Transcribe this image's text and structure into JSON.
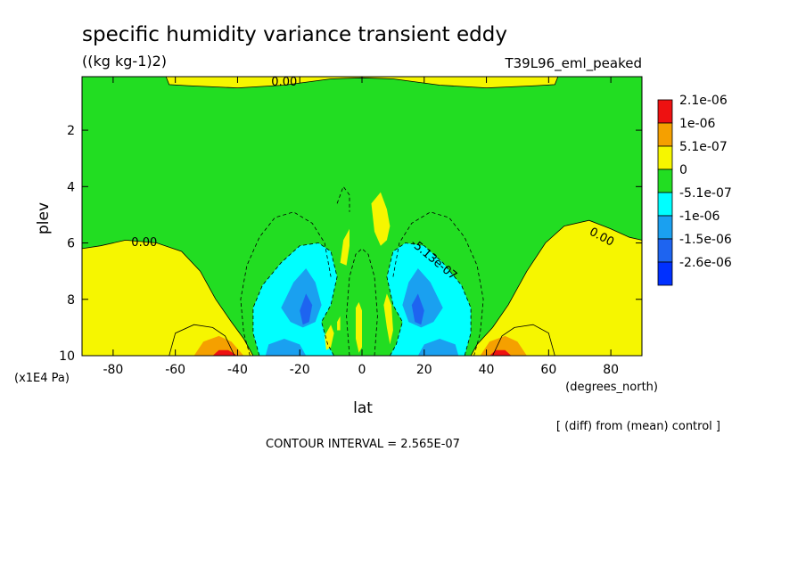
{
  "chart_data": {
    "type": "heatmap",
    "title": "specific humidity variance transient eddy",
    "units": "((kg kg-1)2)",
    "run_label": "T39L96_eml_peaked",
    "xlabel": "lat",
    "x_units": "(degrees_north)",
    "ylabel": "plev",
    "y_units": "(x1E4 Pa)",
    "xlim": [
      -90,
      90
    ],
    "ylim": [
      10,
      0.1
    ],
    "x_ticks": [
      -80,
      -60,
      -40,
      -20,
      0,
      20,
      40,
      60,
      80
    ],
    "x_tick_labels": [
      "-80",
      "-60",
      "-40",
      "-20",
      "0",
      "20",
      "40",
      "60",
      "80"
    ],
    "y_ticks": [
      2,
      4,
      6,
      8,
      10
    ],
    "y_tick_labels": [
      "2",
      "4",
      "6",
      "8",
      "10"
    ],
    "contour_interval_text": "CONTOUR INTERVAL = 2.565E-07",
    "diff_note": "[ (diff) from (mean) control ]",
    "contour_labels": [
      {
        "text": "0.00",
        "x": -25,
        "y": 0.3,
        "rot": 0
      },
      {
        "text": "0.00",
        "x": -70,
        "y": 6.0,
        "rot": 0
      },
      {
        "text": "0.00",
        "x": 77,
        "y": 5.8,
        "rot": 28
      },
      {
        "text": "-5.13e-07",
        "x": 23,
        "y": 6.6,
        "rot": 40
      }
    ],
    "legend": {
      "labels": [
        "2.1e-06",
        "1e-06",
        "5.1e-07",
        "0",
        "-5.1e-07",
        "-1e-06",
        "-1.5e-06",
        "-2.6e-06"
      ],
      "colors": [
        "#ee1111",
        "#f5a000",
        "#f6f600",
        "#22dd22",
        "#00ffff",
        "#1aa0f0",
        "#1e64f0",
        "#0030ff"
      ]
    },
    "fill_colors": {
      "c_n1": "#00ffff",
      "c_n2": "#1aa0f0",
      "c_n3": "#1e64f0",
      "c_p1": "#f6f600",
      "c_p2": "#f5a000",
      "c_p3": "#ee1111",
      "c_zero": "#22dd22"
    },
    "regions": [
      {
        "level": "c_p1",
        "pts": [
          [
            -90,
            6.2
          ],
          [
            -84,
            6.1
          ],
          [
            -76,
            5.9
          ],
          [
            -66,
            6.0
          ],
          [
            -58,
            6.3
          ],
          [
            -52,
            7.0
          ],
          [
            -47,
            8.0
          ],
          [
            -42,
            8.8
          ],
          [
            -38,
            9.4
          ],
          [
            -35,
            10
          ],
          [
            -90,
            10
          ]
        ]
      },
      {
        "level": "c_p1",
        "pts": [
          [
            90,
            5.9
          ],
          [
            86,
            5.8
          ],
          [
            80,
            5.5
          ],
          [
            73,
            5.2
          ],
          [
            65,
            5.4
          ],
          [
            59,
            6.0
          ],
          [
            53,
            7.0
          ],
          [
            47,
            8.2
          ],
          [
            42,
            9.0
          ],
          [
            37,
            9.6
          ],
          [
            35,
            10
          ],
          [
            90,
            10
          ]
        ]
      },
      {
        "level": "c_p2",
        "pts": [
          [
            -54,
            10
          ],
          [
            -51,
            9.5
          ],
          [
            -46,
            9.3
          ],
          [
            -42,
            9.5
          ],
          [
            -38,
            10
          ]
        ]
      },
      {
        "level": "c_p3",
        "pts": [
          [
            -48,
            10
          ],
          [
            -46,
            9.8
          ],
          [
            -43,
            9.8
          ],
          [
            -40,
            10
          ]
        ]
      },
      {
        "level": "c_p2",
        "pts": [
          [
            38,
            10
          ],
          [
            41,
            9.5
          ],
          [
            46,
            9.3
          ],
          [
            50,
            9.5
          ],
          [
            53,
            10
          ]
        ]
      },
      {
        "level": "c_p3",
        "pts": [
          [
            41,
            10
          ],
          [
            43,
            9.8
          ],
          [
            46,
            9.8
          ],
          [
            48,
            10
          ]
        ]
      },
      {
        "level": "c_p1",
        "pts": [
          [
            -63,
            0.1
          ],
          [
            -62,
            0.38
          ],
          [
            -56,
            0.42
          ],
          [
            -40,
            0.5
          ],
          [
            -25,
            0.4
          ],
          [
            -10,
            0.18
          ],
          [
            0,
            0.14
          ],
          [
            10,
            0.18
          ],
          [
            25,
            0.4
          ],
          [
            40,
            0.5
          ],
          [
            56,
            0.42
          ],
          [
            62,
            0.38
          ],
          [
            63,
            0.1
          ]
        ]
      },
      {
        "level": "c_n1",
        "pts": [
          [
            -33,
            10
          ],
          [
            -35,
            9.2
          ],
          [
            -35,
            8.3
          ],
          [
            -32,
            7.5
          ],
          [
            -26,
            6.7
          ],
          [
            -20,
            6.1
          ],
          [
            -14,
            6.0
          ],
          [
            -10,
            6.3
          ],
          [
            -8,
            7.2
          ],
          [
            -10,
            8.2
          ],
          [
            -13,
            8.8
          ],
          [
            -11,
            9.6
          ],
          [
            -9,
            10
          ]
        ]
      },
      {
        "level": "c_n2",
        "pts": [
          [
            -26,
            8.3
          ],
          [
            -22,
            7.4
          ],
          [
            -18,
            6.9
          ],
          [
            -15,
            7.4
          ],
          [
            -13,
            8.2
          ],
          [
            -15,
            8.8
          ],
          [
            -19,
            9.0
          ],
          [
            -23,
            8.8
          ]
        ]
      },
      {
        "level": "c_n3",
        "pts": [
          [
            -20,
            8.4
          ],
          [
            -18,
            7.8
          ],
          [
            -16,
            8.2
          ],
          [
            -17,
            8.8
          ],
          [
            -19,
            8.9
          ]
        ]
      },
      {
        "level": "c_n2",
        "pts": [
          [
            -31,
            10
          ],
          [
            -30,
            9.6
          ],
          [
            -25,
            9.4
          ],
          [
            -20,
            9.6
          ],
          [
            -18,
            10
          ]
        ]
      },
      {
        "level": "c_n1",
        "pts": [
          [
            9,
            10
          ],
          [
            11,
            9.6
          ],
          [
            13,
            8.8
          ],
          [
            10,
            8.2
          ],
          [
            8,
            7.2
          ],
          [
            10,
            6.3
          ],
          [
            14,
            6.0
          ],
          [
            20,
            6.1
          ],
          [
            26,
            6.7
          ],
          [
            32,
            7.5
          ],
          [
            35,
            8.3
          ],
          [
            35,
            9.2
          ],
          [
            33,
            10
          ]
        ]
      },
      {
        "level": "c_n2",
        "pts": [
          [
            13,
            8.2
          ],
          [
            15,
            7.4
          ],
          [
            18,
            6.9
          ],
          [
            22,
            7.4
          ],
          [
            26,
            8.3
          ],
          [
            23,
            8.8
          ],
          [
            19,
            9.0
          ],
          [
            15,
            8.8
          ]
        ]
      },
      {
        "level": "c_n3",
        "pts": [
          [
            16,
            8.2
          ],
          [
            18,
            7.8
          ],
          [
            20,
            8.4
          ],
          [
            19,
            8.9
          ],
          [
            17,
            8.8
          ]
        ]
      },
      {
        "level": "c_n2",
        "pts": [
          [
            18,
            10
          ],
          [
            20,
            9.6
          ],
          [
            25,
            9.4
          ],
          [
            30,
            9.6
          ],
          [
            31,
            10
          ]
        ]
      },
      {
        "level": "c_p1",
        "pts": [
          [
            3,
            4.6
          ],
          [
            6,
            4.2
          ],
          [
            8,
            4.8
          ],
          [
            9,
            5.4
          ],
          [
            8,
            5.9
          ],
          [
            6,
            6.1
          ],
          [
            4,
            5.6
          ]
        ]
      },
      {
        "level": "c_p1",
        "pts": [
          [
            -7,
            6.7
          ],
          [
            -6,
            5.9
          ],
          [
            -4,
            5.5
          ],
          [
            -4,
            6.1
          ],
          [
            -5,
            6.8
          ]
        ]
      },
      {
        "level": "c_p1",
        "pts": [
          [
            7,
            8.2
          ],
          [
            8,
            7.8
          ],
          [
            9.5,
            8.2
          ],
          [
            10,
            9.1
          ],
          [
            9,
            9.6
          ],
          [
            8,
            9.0
          ]
        ]
      },
      {
        "level": "c_p1",
        "pts": [
          [
            -12,
            9.3
          ],
          [
            -10,
            8.9
          ],
          [
            -9,
            9.2
          ],
          [
            -10,
            9.7
          ],
          [
            -11.5,
            9.8
          ]
        ]
      },
      {
        "level": "c_p1",
        "pts": [
          [
            -2,
            8.3
          ],
          [
            -1,
            8.1
          ],
          [
            0,
            8.4
          ],
          [
            0,
            9.7
          ],
          [
            -1,
            9.9
          ],
          [
            -2,
            9.4
          ]
        ]
      },
      {
        "level": "c_p1",
        "pts": [
          [
            -8,
            8.8
          ],
          [
            -7,
            8.6
          ],
          [
            -7,
            9.1
          ],
          [
            -8,
            9.1
          ]
        ]
      }
    ],
    "contour_lines": [
      {
        "dash": false,
        "pts": [
          [
            -90,
            6.2
          ],
          [
            -84,
            6.1
          ],
          [
            -76,
            5.9
          ],
          [
            -66,
            6.0
          ],
          [
            -58,
            6.3
          ],
          [
            -52,
            7.0
          ],
          [
            -47,
            8.0
          ],
          [
            -42,
            8.8
          ],
          [
            -38,
            9.4
          ],
          [
            -35,
            10
          ]
        ]
      },
      {
        "dash": false,
        "pts": [
          [
            90,
            5.9
          ],
          [
            86,
            5.8
          ],
          [
            80,
            5.5
          ],
          [
            73,
            5.2
          ],
          [
            65,
            5.4
          ],
          [
            59,
            6.0
          ],
          [
            53,
            7.0
          ],
          [
            47,
            8.2
          ],
          [
            42,
            9.0
          ],
          [
            37,
            9.6
          ],
          [
            35,
            10
          ]
        ]
      },
      {
        "dash": false,
        "pts": [
          [
            -62,
            10
          ],
          [
            -60,
            9.2
          ],
          [
            -54,
            8.9
          ],
          [
            -48,
            9.0
          ],
          [
            -44,
            9.3
          ],
          [
            -41,
            10
          ]
        ]
      },
      {
        "dash": false,
        "pts": [
          [
            42,
            10
          ],
          [
            45,
            9.3
          ],
          [
            49,
            9.0
          ],
          [
            55,
            8.9
          ],
          [
            60,
            9.2
          ],
          [
            62,
            10
          ]
        ]
      },
      {
        "dash": false,
        "pts": [
          [
            -63,
            0.1
          ],
          [
            -62,
            0.38
          ],
          [
            -56,
            0.42
          ],
          [
            -40,
            0.5
          ],
          [
            -25,
            0.4
          ],
          [
            -10,
            0.18
          ],
          [
            0,
            0.14
          ],
          [
            10,
            0.18
          ],
          [
            25,
            0.4
          ],
          [
            40,
            0.5
          ],
          [
            56,
            0.42
          ],
          [
            62,
            0.38
          ],
          [
            63,
            0.1
          ]
        ]
      },
      {
        "dash": true,
        "pts": [
          [
            -36,
            10
          ],
          [
            -38,
            9.2
          ],
          [
            -39,
            8.0
          ],
          [
            -37,
            6.8
          ],
          [
            -33,
            5.8
          ],
          [
            -28,
            5.1
          ],
          [
            -22,
            4.9
          ],
          [
            -16,
            5.3
          ],
          [
            -12,
            6.0
          ],
          [
            -10,
            7.2
          ]
        ]
      },
      {
        "dash": true,
        "pts": [
          [
            10,
            7.2
          ],
          [
            12,
            6.0
          ],
          [
            16,
            5.3
          ],
          [
            22,
            4.9
          ],
          [
            28,
            5.1
          ],
          [
            33,
            5.8
          ],
          [
            37,
            6.8
          ],
          [
            39,
            8.0
          ],
          [
            38,
            9.2
          ],
          [
            36,
            10
          ]
        ]
      },
      {
        "dash": true,
        "pts": [
          [
            -33,
            10
          ],
          [
            -35,
            9.2
          ],
          [
            -35,
            8.3
          ],
          [
            -32,
            7.5
          ],
          [
            -26,
            6.7
          ],
          [
            -20,
            6.1
          ],
          [
            -14,
            6.0
          ],
          [
            -10,
            6.3
          ],
          [
            -8,
            7.2
          ],
          [
            -10,
            8.2
          ],
          [
            -13,
            8.8
          ],
          [
            -11,
            9.6
          ],
          [
            -9,
            10
          ]
        ]
      },
      {
        "dash": true,
        "pts": [
          [
            9,
            10
          ],
          [
            11,
            9.6
          ],
          [
            13,
            8.8
          ],
          [
            10,
            8.2
          ],
          [
            8,
            7.2
          ],
          [
            10,
            6.3
          ],
          [
            14,
            6.0
          ],
          [
            20,
            6.1
          ],
          [
            26,
            6.7
          ],
          [
            32,
            7.5
          ],
          [
            35,
            8.3
          ],
          [
            35,
            9.2
          ],
          [
            33,
            10
          ]
        ]
      },
      {
        "dash": true,
        "pts": [
          [
            -4,
            10
          ],
          [
            -5,
            8.6
          ],
          [
            -4,
            7.2
          ],
          [
            -2,
            6.4
          ],
          [
            0,
            6.2
          ],
          [
            2,
            6.4
          ],
          [
            4,
            7.2
          ],
          [
            5,
            8.6
          ],
          [
            4,
            10
          ]
        ]
      },
      {
        "dash": true,
        "pts": [
          [
            -8,
            4.6
          ],
          [
            -6,
            4.0
          ],
          [
            -4,
            4.3
          ],
          [
            -4,
            4.9
          ]
        ]
      }
    ]
  }
}
